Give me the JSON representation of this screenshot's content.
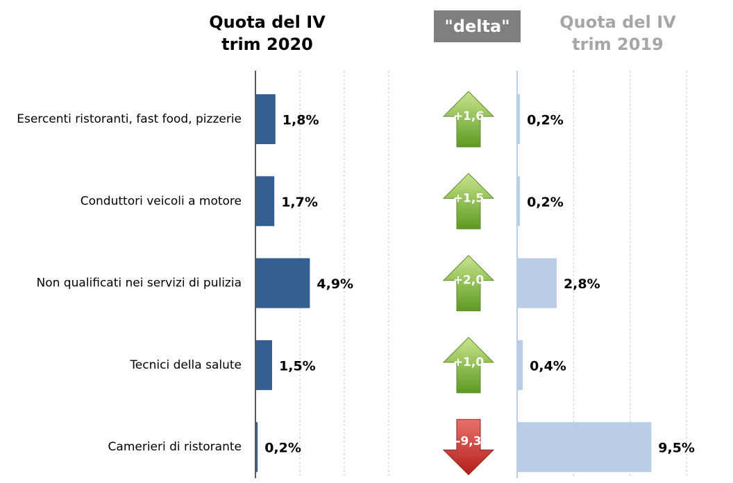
{
  "chart_data": [
    {
      "type": "bar",
      "orientation": "horizontal",
      "title": "Quota del IV\ntrim 2020",
      "categories": [
        "Esercenti ristoranti, fast food, pizzerie",
        "Conduttori veicoli a motore",
        "Non qualificati nei servizi di pulizia",
        "Tecnici della salute",
        "Camerieri di ristorante"
      ],
      "values": [
        1.8,
        1.7,
        4.9,
        1.5,
        0.2
      ],
      "value_labels": [
        "1,8%",
        "1,7%",
        "4,9%",
        "1,5%",
        "0,2%"
      ],
      "color": "#355f91",
      "xlim": [
        0,
        14.5
      ],
      "xticks": [
        0,
        4,
        8,
        12
      ],
      "grid": true
    },
    {
      "type": "arrow",
      "title": "\"delta\"",
      "values": [
        1.6,
        1.5,
        2.0,
        1.0,
        -9.3
      ],
      "value_labels": [
        "+1,6",
        "+1,5",
        "+2,0",
        "+1,0",
        "-9,3"
      ],
      "up_color": "#7fb13a",
      "down_color": "#c0302c"
    },
    {
      "type": "bar",
      "orientation": "horizontal",
      "title": "Quota del IV\ntrim 2019",
      "values": [
        0.2,
        0.2,
        2.8,
        0.4,
        9.5
      ],
      "value_labels": [
        "0,2%",
        "0,2%",
        "2,8%",
        "0,4%",
        "9,5%"
      ],
      "color": "#b9cde5",
      "xlim": [
        0,
        14.5
      ],
      "xticks": [
        0,
        4,
        8,
        12
      ],
      "grid": true
    }
  ]
}
